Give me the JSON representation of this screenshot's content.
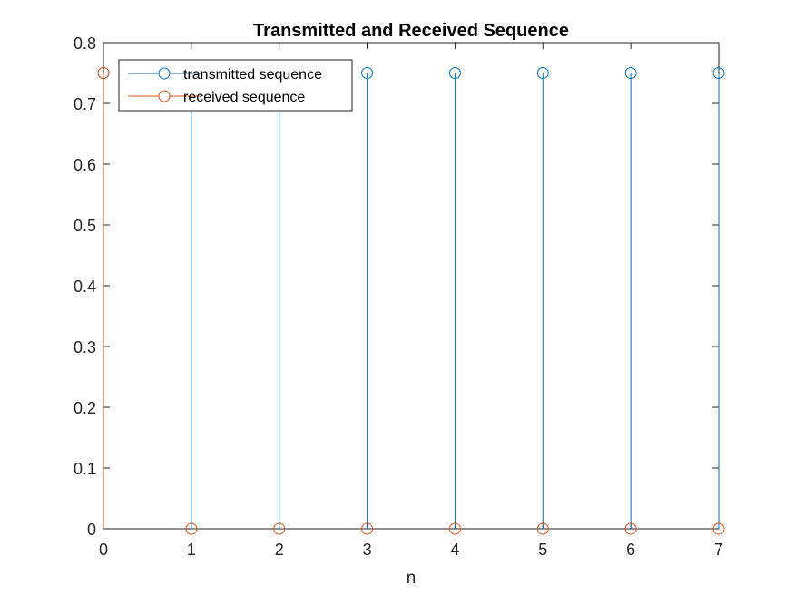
{
  "chart_data": {
    "type": "stem",
    "title": "Transmitted and Received Sequence",
    "xlabel": "n",
    "ylabel": "",
    "xlim": [
      0,
      7
    ],
    "ylim": [
      0,
      0.8
    ],
    "xticks": [
      0,
      1,
      2,
      3,
      4,
      5,
      6,
      7
    ],
    "yticks": [
      0,
      0.1,
      0.2,
      0.3,
      0.4,
      0.5,
      0.6,
      0.7,
      0.8
    ],
    "xtick_labels": [
      "0",
      "1",
      "2",
      "3",
      "4",
      "5",
      "6",
      "7"
    ],
    "ytick_labels": [
      "0",
      "0.1",
      "0.2",
      "0.3",
      "0.4",
      "0.5",
      "0.6",
      "0.7",
      "0.8"
    ],
    "grid": false,
    "legend_position": "top-left",
    "series": [
      {
        "name": "transmitted sequence",
        "color": "#0072BD",
        "x": [
          0,
          1,
          2,
          3,
          4,
          5,
          6,
          7
        ],
        "values": [
          0.75,
          0.75,
          0.75,
          0.75,
          0.75,
          0.75,
          0.75,
          0.75
        ]
      },
      {
        "name": "received sequence",
        "color": "#D95319",
        "x": [
          0,
          1,
          2,
          3,
          4,
          5,
          6,
          7
        ],
        "values": [
          0.75,
          0,
          0,
          0,
          0,
          0,
          0,
          0
        ]
      }
    ]
  }
}
